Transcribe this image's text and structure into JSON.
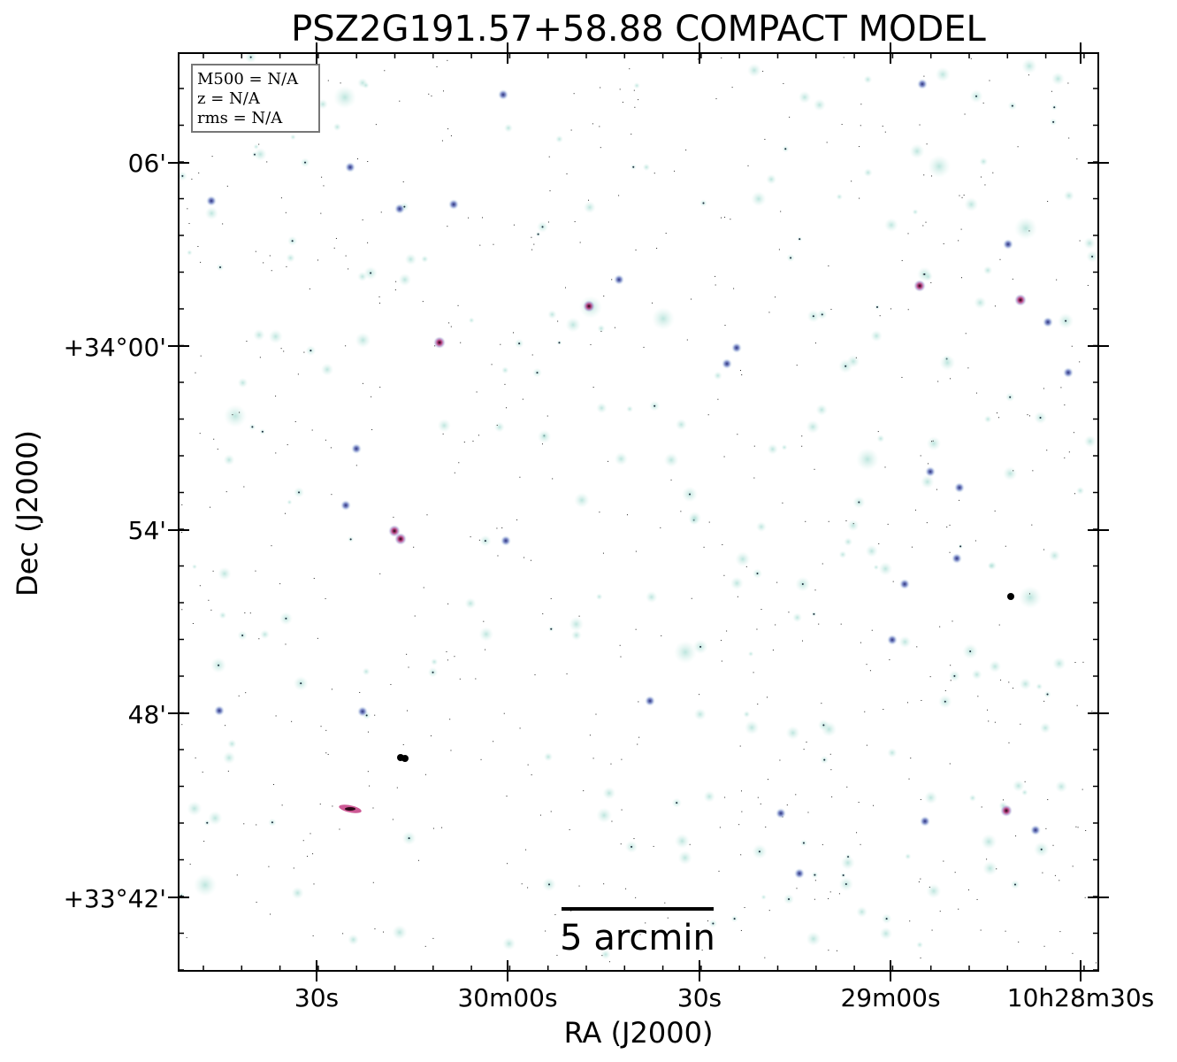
{
  "title": "PSZ2G191.57+58.88 COMPACT MODEL",
  "xlabel": "RA (J2000)",
  "ylabel": "Dec (J2000)",
  "ra_ticks": [
    "30s",
    "30m00s",
    "30s",
    "29m00s",
    "10h28m30s"
  ],
  "dec_ticks": [
    "06'",
    "+34°00'",
    "54'",
    "48'",
    "+33°42'"
  ],
  "info_box": {
    "line1": "M500 = N/A",
    "line2": "z = N/A",
    "line3": "rms = N/A"
  },
  "scale_bar": {
    "label": "5 arcmin"
  },
  "colors": {
    "faint_source": "#b9e3dc",
    "mid_source": "#5a6fb4",
    "bright_source": "#c0307a",
    "core": "#000000"
  }
}
